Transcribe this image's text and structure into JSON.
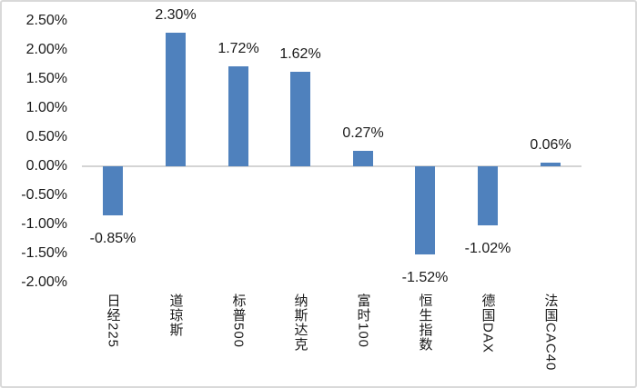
{
  "chart_data": {
    "type": "bar",
    "title": "",
    "xlabel": "",
    "ylabel": "",
    "categories": [
      "日经225",
      "道琼斯",
      "标普500",
      "纳斯达克",
      "富时100",
      "恒生指数",
      "德国DAX",
      "法国CAC40"
    ],
    "values": [
      -0.85,
      2.3,
      1.72,
      1.62,
      0.27,
      -1.52,
      -1.02,
      0.06
    ],
    "value_labels": [
      "-0.85%",
      "2.30%",
      "1.72%",
      "1.62%",
      "0.27%",
      "-1.52%",
      "-1.02%",
      "0.06%"
    ],
    "y_tick_labels": [
      "2.50%",
      "2.00%",
      "1.50%",
      "1.00%",
      "0.50%",
      "0.00%",
      "-0.50%",
      "-1.00%",
      "-1.50%",
      "-2.00%"
    ],
    "ylim": [
      -2.0,
      2.5
    ],
    "y_tick_step": 0.5,
    "grid": false,
    "legend_position": "none",
    "bar_color": "#4F81BD",
    "axis_line_color": "#d4d4d4",
    "text_color": "#1a1a1a"
  }
}
